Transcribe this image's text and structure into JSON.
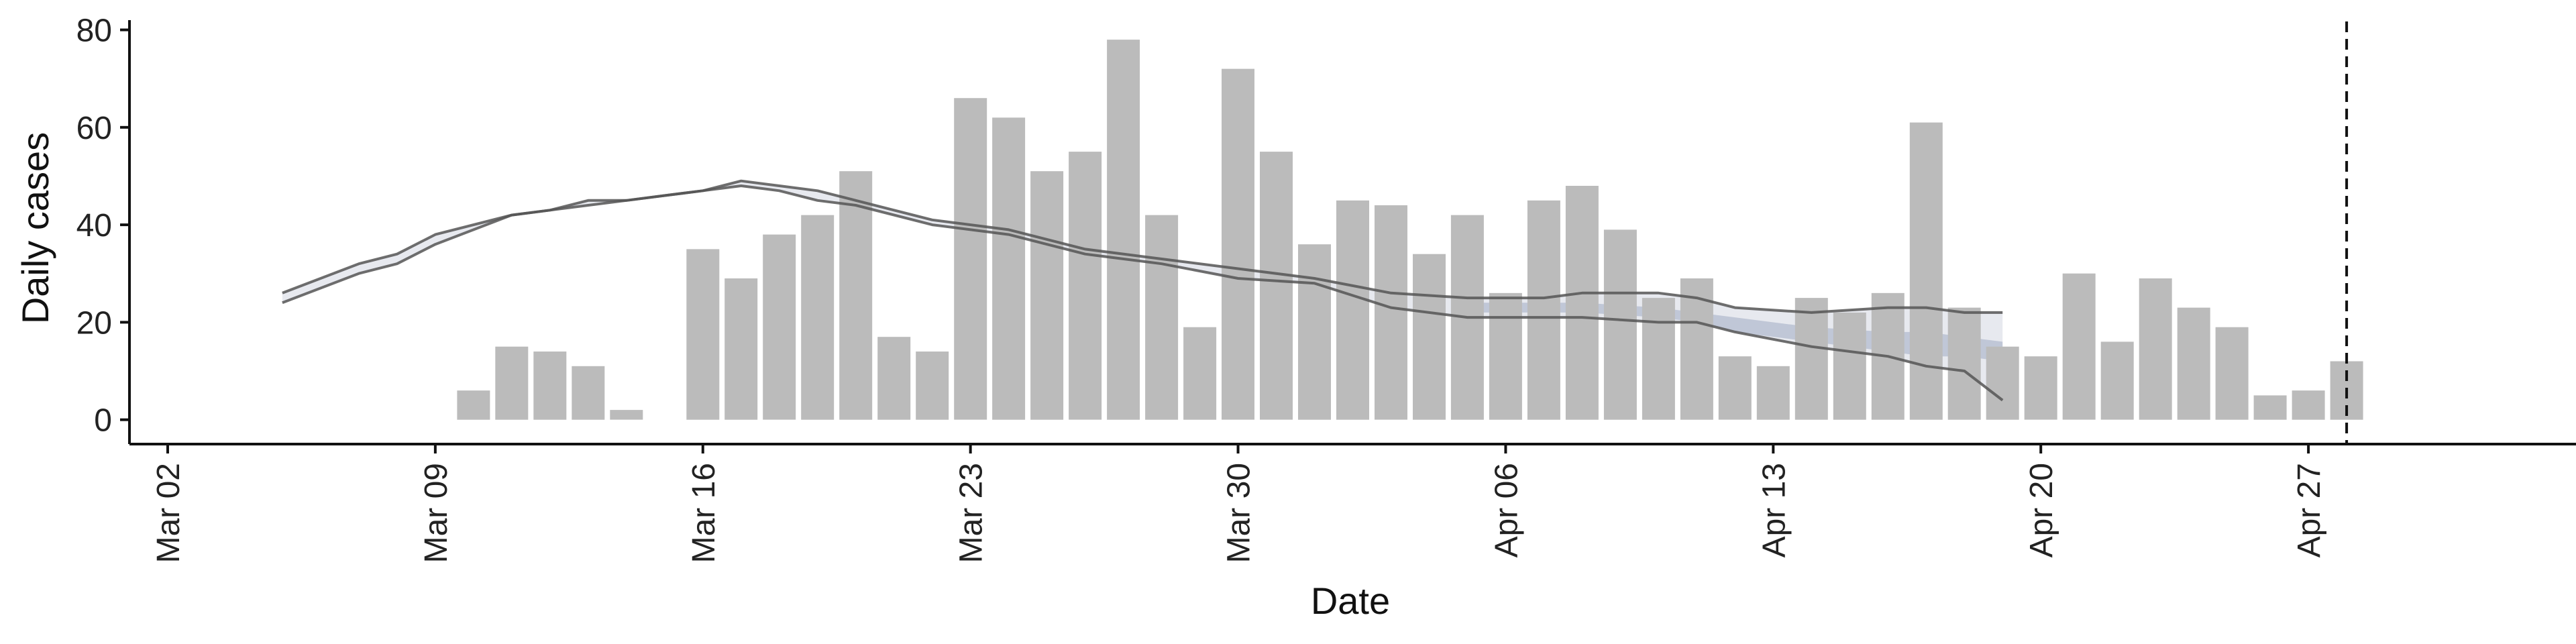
{
  "chart_data": {
    "type": "bar",
    "xlabel": "Date",
    "ylabel": "Daily cases",
    "ylim": [
      -5,
      82
    ],
    "xlim": [
      "2020-03-01",
      "2020-05-04"
    ],
    "yticks": [
      0,
      20,
      40,
      60,
      80
    ],
    "x_tick_labels": [
      {
        "date": "2020-03-02",
        "label": "Mar 02"
      },
      {
        "date": "2020-03-09",
        "label": "Mar 09"
      },
      {
        "date": "2020-03-16",
        "label": "Mar 16"
      },
      {
        "date": "2020-03-23",
        "label": "Mar 23"
      },
      {
        "date": "2020-03-30",
        "label": "Mar 30"
      },
      {
        "date": "2020-04-06",
        "label": "Apr 06"
      },
      {
        "date": "2020-04-13",
        "label": "Apr 13"
      },
      {
        "date": "2020-04-20",
        "label": "Apr 20"
      },
      {
        "date": "2020-04-27",
        "label": "Apr 27"
      }
    ],
    "bars": {
      "color": "#bbbbbb",
      "dates": [
        "2020-03-10",
        "2020-03-11",
        "2020-03-12",
        "2020-03-13",
        "2020-03-14",
        "2020-03-15",
        "2020-03-16",
        "2020-03-17",
        "2020-03-18",
        "2020-03-19",
        "2020-03-20",
        "2020-03-21",
        "2020-03-22",
        "2020-03-23",
        "2020-03-24",
        "2020-03-25",
        "2020-03-26",
        "2020-03-27",
        "2020-03-28",
        "2020-03-29",
        "2020-03-30",
        "2020-03-31",
        "2020-04-01",
        "2020-04-02",
        "2020-04-03",
        "2020-04-04",
        "2020-04-05",
        "2020-04-06",
        "2020-04-07",
        "2020-04-08",
        "2020-04-09",
        "2020-04-10",
        "2020-04-11",
        "2020-04-12",
        "2020-04-13",
        "2020-04-14",
        "2020-04-15",
        "2020-04-16",
        "2020-04-17",
        "2020-04-18",
        "2020-04-19",
        "2020-04-20",
        "2020-04-21",
        "2020-04-22",
        "2020-04-23",
        "2020-04-24",
        "2020-04-25",
        "2020-04-26",
        "2020-04-27",
        "2020-04-28"
      ],
      "values": [
        6,
        15,
        14,
        11,
        2,
        0,
        35,
        29,
        38,
        42,
        51,
        17,
        14,
        66,
        62,
        51,
        55,
        78,
        42,
        19,
        72,
        55,
        36,
        45,
        44,
        34,
        42,
        26,
        45,
        48,
        39,
        25,
        29,
        13,
        11,
        25,
        22,
        26,
        61,
        23,
        15,
        13,
        30,
        16,
        29,
        23,
        19,
        5,
        6,
        12
      ]
    },
    "bands": [
      {
        "color": "#dfe2ea",
        "dates": [
          "2020-03-05",
          "2020-03-07",
          "2020-03-08",
          "2020-03-09",
          "2020-03-11",
          "2020-03-12",
          "2020-03-13",
          "2020-03-14",
          "2020-03-15",
          "2020-03-16",
          "2020-03-17",
          "2020-03-18",
          "2020-03-19",
          "2020-03-20",
          "2020-03-22",
          "2020-03-24",
          "2020-03-26",
          "2020-03-28",
          "2020-03-30",
          "2020-04-01",
          "2020-04-03",
          "2020-04-05",
          "2020-04-07",
          "2020-04-08",
          "2020-04-10",
          "2020-04-11",
          "2020-04-12",
          "2020-04-14",
          "2020-04-16",
          "2020-04-17",
          "2020-04-18",
          "2020-04-19"
        ],
        "upper": [
          26,
          32,
          34,
          38,
          42,
          43,
          45,
          45,
          46,
          47,
          49,
          48,
          47,
          45,
          41,
          39,
          35,
          33,
          31,
          29,
          26,
          25,
          25,
          26,
          26,
          25,
          23,
          22,
          23,
          23,
          22,
          22
        ],
        "lower": [
          24,
          30,
          32,
          36,
          42,
          43,
          44,
          45,
          46,
          47,
          48,
          47,
          45,
          44,
          40,
          38,
          34,
          32,
          29,
          28,
          23,
          21,
          21,
          21,
          20,
          20,
          18,
          15,
          13,
          11,
          10,
          4
        ]
      },
      {
        "color": "#a7b0c6",
        "dates": [
          "2020-04-05",
          "2020-04-07",
          "2020-04-08",
          "2020-04-10",
          "2020-04-11",
          "2020-04-12",
          "2020-04-14",
          "2020-04-16",
          "2020-04-17",
          "2020-04-18",
          "2020-04-19"
        ],
        "upper": [
          24,
          24,
          24,
          23,
          22,
          21,
          19,
          18,
          18,
          17,
          16
        ],
        "lower": [
          22,
          22,
          22,
          21,
          20,
          18,
          16,
          14,
          13,
          13,
          12
        ]
      }
    ],
    "lines": [
      {
        "color": "#555555",
        "dates": [
          "2020-03-05",
          "2020-03-07",
          "2020-03-08",
          "2020-03-09",
          "2020-03-11",
          "2020-03-12",
          "2020-03-13",
          "2020-03-14",
          "2020-03-15",
          "2020-03-16",
          "2020-03-17",
          "2020-03-18",
          "2020-03-19",
          "2020-03-20",
          "2020-03-22",
          "2020-03-24",
          "2020-03-26",
          "2020-03-28",
          "2020-03-30",
          "2020-04-01",
          "2020-04-03",
          "2020-04-05",
          "2020-04-07",
          "2020-04-08",
          "2020-04-10",
          "2020-04-11",
          "2020-04-12",
          "2020-04-14",
          "2020-04-16",
          "2020-04-17",
          "2020-04-18",
          "2020-04-19"
        ],
        "values": [
          26,
          32,
          34,
          38,
          42,
          43,
          45,
          45,
          46,
          47,
          49,
          48,
          47,
          45,
          41,
          39,
          35,
          33,
          31,
          29,
          26,
          25,
          25,
          26,
          26,
          25,
          23,
          22,
          23,
          23,
          22,
          22
        ]
      },
      {
        "color": "#555555",
        "dates": [
          "2020-03-05",
          "2020-03-07",
          "2020-03-08",
          "2020-03-09",
          "2020-03-11",
          "2020-03-12",
          "2020-03-13",
          "2020-03-14",
          "2020-03-15",
          "2020-03-16",
          "2020-03-17",
          "2020-03-18",
          "2020-03-19",
          "2020-03-20",
          "2020-03-22",
          "2020-03-24",
          "2020-03-26",
          "2020-03-28",
          "2020-03-30",
          "2020-04-01",
          "2020-04-03",
          "2020-04-05",
          "2020-04-07",
          "2020-04-08",
          "2020-04-10",
          "2020-04-11",
          "2020-04-12",
          "2020-04-14",
          "2020-04-16",
          "2020-04-17",
          "2020-04-18",
          "2020-04-19"
        ],
        "values": [
          24,
          30,
          32,
          36,
          42,
          43,
          44,
          45,
          46,
          47,
          48,
          47,
          45,
          44,
          40,
          38,
          34,
          32,
          29,
          28,
          23,
          21,
          21,
          21,
          20,
          20,
          18,
          15,
          13,
          11,
          10,
          4
        ]
      }
    ],
    "vline": {
      "date": "2020-04-28",
      "style": "dashed",
      "color": "#111111"
    },
    "grid": false,
    "legend": "none"
  }
}
